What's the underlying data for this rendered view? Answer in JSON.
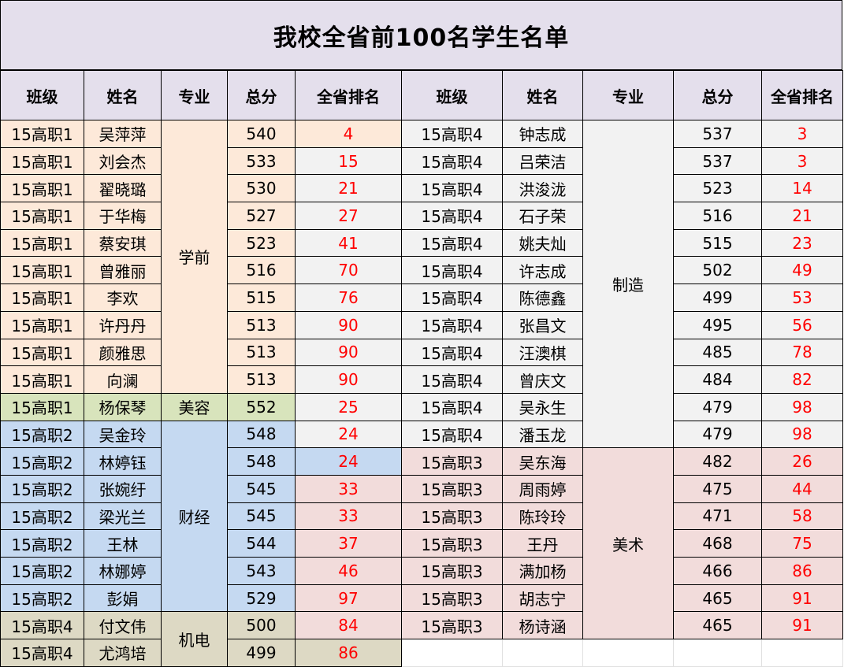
{
  "title": "我校全省前100名学生名单",
  "headers": [
    "班级",
    "姓名",
    "专业",
    "总分",
    "全省排名",
    "班级",
    "姓名",
    "专业",
    "总分",
    "全省排名"
  ],
  "left": [
    {
      "class": "15高职1",
      "name": "吴萍萍",
      "score": "540",
      "rank": "4"
    },
    {
      "class": "15高职1",
      "name": "刘会杰",
      "score": "533",
      "rank": "15"
    },
    {
      "class": "15高职1",
      "name": "翟晓璐",
      "score": "530",
      "rank": "21"
    },
    {
      "class": "15高职1",
      "name": "于华梅",
      "score": "527",
      "rank": "27"
    },
    {
      "class": "15高职1",
      "name": "蔡安琪",
      "score": "523",
      "rank": "41"
    },
    {
      "class": "15高职1",
      "name": "曾雅丽",
      "score": "516",
      "rank": "70"
    },
    {
      "class": "15高职1",
      "name": "李欢",
      "score": "515",
      "rank": "76"
    },
    {
      "class": "15高职1",
      "name": "许丹丹",
      "score": "513",
      "rank": "90"
    },
    {
      "class": "15高职1",
      "name": "颜雅思",
      "score": "513",
      "rank": "90"
    },
    {
      "class": "15高职1",
      "name": "向澜",
      "score": "513",
      "rank": "90"
    },
    {
      "class": "15高职1",
      "name": "杨保琴",
      "score": "552",
      "rank": "25"
    },
    {
      "class": "15高职2",
      "name": "吴金玲",
      "score": "548",
      "rank": "24"
    },
    {
      "class": "15高职2",
      "name": "林婷钰",
      "score": "548",
      "rank": "24"
    },
    {
      "class": "15高职2",
      "name": "张婉纡",
      "score": "545",
      "rank": "33"
    },
    {
      "class": "15高职2",
      "name": "梁光兰",
      "score": "545",
      "rank": "33"
    },
    {
      "class": "15高职2",
      "name": "王林",
      "score": "544",
      "rank": "37"
    },
    {
      "class": "15高职2",
      "name": "林娜婷",
      "score": "543",
      "rank": "46"
    },
    {
      "class": "15高职2",
      "name": "彭娟",
      "score": "529",
      "rank": "97"
    },
    {
      "class": "15高职4",
      "name": "付文伟",
      "score": "500",
      "rank": "84"
    },
    {
      "class": "15高职4",
      "name": "尤鸿培",
      "score": "499",
      "rank": "86"
    }
  ],
  "left_majors": [
    "学前",
    "美容",
    "财经",
    "机电"
  ],
  "right": [
    {
      "class": "15高职4",
      "name": "钟志成",
      "score": "537",
      "rank": "3"
    },
    {
      "class": "15高职4",
      "name": "吕荣洁",
      "score": "537",
      "rank": "3"
    },
    {
      "class": "15高职4",
      "name": "洪浚泷",
      "score": "523",
      "rank": "14"
    },
    {
      "class": "15高职4",
      "name": "石子荣",
      "score": "516",
      "rank": "21"
    },
    {
      "class": "15高职4",
      "name": "姚夫灿",
      "score": "515",
      "rank": "23"
    },
    {
      "class": "15高职4",
      "name": "许志成",
      "score": "502",
      "rank": "49"
    },
    {
      "class": "15高职4",
      "name": "陈德鑫",
      "score": "499",
      "rank": "53"
    },
    {
      "class": "15高职4",
      "name": "张昌文",
      "score": "495",
      "rank": "56"
    },
    {
      "class": "15高职4",
      "name": "汪澳棋",
      "score": "485",
      "rank": "78"
    },
    {
      "class": "15高职4",
      "name": "曾庆文",
      "score": "484",
      "rank": "82"
    },
    {
      "class": "15高职4",
      "name": "吴永生",
      "score": "479",
      "rank": "98"
    },
    {
      "class": "15高职4",
      "name": "潘玉龙",
      "score": "479",
      "rank": "98"
    },
    {
      "class": "15高职3",
      "name": "吴东海",
      "score": "482",
      "rank": "26"
    },
    {
      "class": "15高职3",
      "name": "周雨婷",
      "score": "475",
      "rank": "44"
    },
    {
      "class": "15高职3",
      "name": "陈玲玲",
      "score": "471",
      "rank": "58"
    },
    {
      "class": "15高职3",
      "name": "王丹",
      "score": "468",
      "rank": "75"
    },
    {
      "class": "15高职3",
      "name": "满加杨",
      "score": "466",
      "rank": "86"
    },
    {
      "class": "15高职3",
      "name": "胡志宁",
      "score": "465",
      "rank": "91"
    },
    {
      "class": "15高职3",
      "name": "杨诗涵",
      "score": "465",
      "rank": "91"
    }
  ],
  "right_majors": [
    "制造",
    "美术"
  ],
  "colors": {
    "header_bg": "#e4dfec",
    "rank_text": "#ff0000",
    "preschool_bg": "#fde9d9",
    "beauty_bg": "#d8e4bc",
    "finance_bg": "#c5d9f1",
    "mechatronics_bg": "#ddd9c4",
    "manufacturing_bg": "#f2f2f2",
    "art_bg": "#f2dcdb"
  }
}
